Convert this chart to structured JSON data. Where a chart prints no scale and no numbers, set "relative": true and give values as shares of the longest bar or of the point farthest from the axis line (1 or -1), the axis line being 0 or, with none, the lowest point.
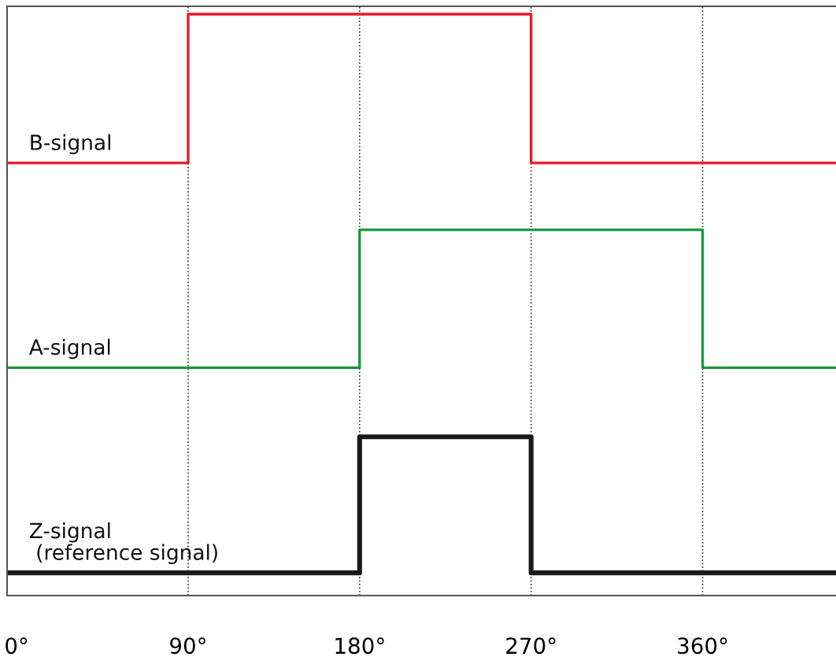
{
  "chart_data": {
    "type": "step",
    "relative": true,
    "xlim": [
      -5,
      430
    ],
    "xticks": [
      {
        "value": 0,
        "label": "0°"
      },
      {
        "value": 90,
        "label": "90°"
      },
      {
        "value": 180,
        "label": "180°"
      },
      {
        "value": 270,
        "label": "270°"
      },
      {
        "value": 360,
        "label": "360°"
      }
    ],
    "series": [
      {
        "name": "B-signal",
        "color": "#e8192c",
        "x": [
          -5,
          90,
          270,
          430
        ],
        "values": [
          0.744,
          1,
          0.744,
          0.744
        ]
      },
      {
        "name": "A-signal",
        "color": "#1a9641",
        "x": [
          -5,
          180,
          360,
          430
        ],
        "values": [
          0.392,
          0.629,
          0.392,
          0.392
        ]
      },
      {
        "name": "Z-signal\n (reference signal)",
        "color": "#1a1a1a",
        "x": [
          -5,
          180,
          270,
          430
        ],
        "values": [
          0.039,
          0.273,
          0.039,
          0.039
        ]
      }
    ],
    "ref_lines": [
      {
        "axis": "x",
        "value": 90,
        "color": "#333333",
        "line_style": "dotted"
      },
      {
        "axis": "x",
        "value": 180,
        "color": "#333333",
        "line_style": "dotted"
      },
      {
        "axis": "x",
        "value": 270,
        "color": "#333333",
        "line_style": "dotted"
      },
      {
        "axis": "x",
        "value": 360,
        "color": "#333333",
        "line_style": "dotted"
      }
    ]
  }
}
